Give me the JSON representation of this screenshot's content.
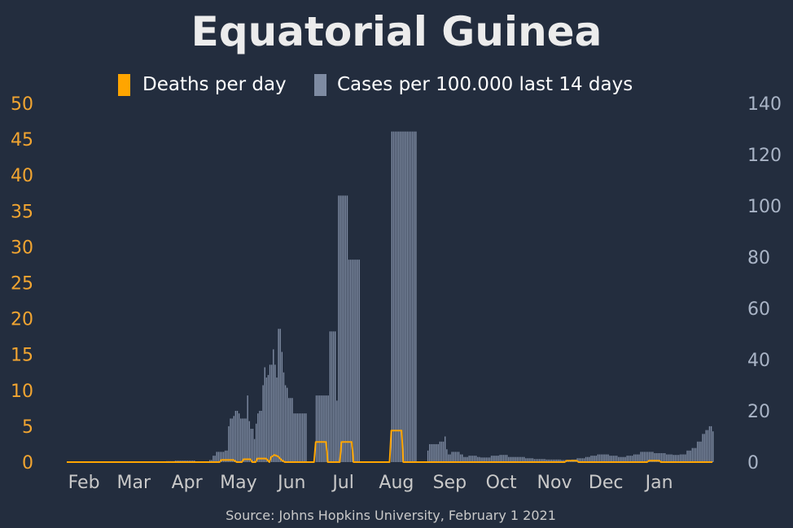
{
  "chart_data": {
    "type": "bar+line",
    "title": "Equatorial Guinea",
    "source": "Source: Johns Hopkins University, February 1 2021",
    "legend": {
      "placement": "top-center",
      "entries": [
        {
          "label": "Deaths per day",
          "color": "#ffa500",
          "series": "deaths"
        },
        {
          "label": "Cases per 100.000 last 14 days",
          "color": "#7e8ba2",
          "series": "cases"
        }
      ]
    },
    "x_axis": {
      "type": "date",
      "range": [
        "2020-01-22",
        "2021-02-01"
      ],
      "ticks": [
        {
          "label": "Feb",
          "date": "2020-02-01"
        },
        {
          "label": "Mar",
          "date": "2020-03-01"
        },
        {
          "label": "Apr",
          "date": "2020-04-01"
        },
        {
          "label": "May",
          "date": "2020-05-01"
        },
        {
          "label": "Jun",
          "date": "2020-06-01"
        },
        {
          "label": "Jul",
          "date": "2020-07-01"
        },
        {
          "label": "Aug",
          "date": "2020-08-01"
        },
        {
          "label": "Sep",
          "date": "2020-09-01"
        },
        {
          "label": "Oct",
          "date": "2020-10-01"
        },
        {
          "label": "Nov",
          "date": "2020-11-01"
        },
        {
          "label": "Dec",
          "date": "2020-12-01"
        },
        {
          "label": "Jan",
          "date": "2021-01-01"
        }
      ]
    },
    "y_left": {
      "range": [
        0,
        50
      ],
      "ticks": [
        "0",
        "5",
        "10",
        "15",
        "20",
        "25",
        "30",
        "35",
        "40",
        "45",
        "50"
      ],
      "color": "#f2a531"
    },
    "y_right": {
      "range": [
        0,
        140
      ],
      "ticks": [
        "0",
        "20",
        "40",
        "60",
        "80",
        "100",
        "120",
        "140"
      ],
      "color": "#a9b4c6"
    },
    "grid": false,
    "series": [
      {
        "id": "cases",
        "type": "bar",
        "axis": "right",
        "color": "#7e8ba2",
        "points": [
          [
            "2020-03-15",
            0.2
          ],
          [
            "2020-03-20",
            0.4
          ],
          [
            "2020-03-25",
            0.6
          ],
          [
            "2020-04-01",
            0.6
          ],
          [
            "2020-04-06",
            0.3
          ],
          [
            "2020-04-11",
            0.2
          ],
          [
            "2020-04-14",
            0.8
          ],
          [
            "2020-04-16",
            2.5
          ],
          [
            "2020-04-18",
            4.0
          ],
          [
            "2020-04-23",
            4.5
          ],
          [
            "2020-04-25",
            14
          ],
          [
            "2020-04-26",
            17
          ],
          [
            "2020-04-28",
            18
          ],
          [
            "2020-04-29",
            20
          ],
          [
            "2020-05-01",
            19
          ],
          [
            "2020-05-02",
            17
          ],
          [
            "2020-05-05",
            17
          ],
          [
            "2020-05-06",
            26
          ],
          [
            "2020-05-07",
            16
          ],
          [
            "2020-05-08",
            13
          ],
          [
            "2020-05-10",
            9
          ],
          [
            "2020-05-11",
            15
          ],
          [
            "2020-05-12",
            19
          ],
          [
            "2020-05-13",
            20
          ],
          [
            "2020-05-15",
            30
          ],
          [
            "2020-05-16",
            37
          ],
          [
            "2020-05-17",
            33
          ],
          [
            "2020-05-18",
            34
          ],
          [
            "2020-05-19",
            38
          ],
          [
            "2020-05-21",
            44
          ],
          [
            "2020-05-22",
            38
          ],
          [
            "2020-05-23",
            33
          ],
          [
            "2020-05-24",
            52
          ],
          [
            "2020-05-25",
            52
          ],
          [
            "2020-05-26",
            43
          ],
          [
            "2020-05-27",
            35
          ],
          [
            "2020-05-28",
            30
          ],
          [
            "2020-05-29",
            29
          ],
          [
            "2020-05-30",
            25
          ],
          [
            "2020-06-01",
            25
          ],
          [
            "2020-06-02",
            19
          ],
          [
            "2020-06-05",
            19
          ],
          [
            "2020-06-10",
            0
          ],
          [
            "2020-06-15",
            26
          ],
          [
            "2020-06-23",
            51
          ],
          [
            "2020-06-27",
            24
          ],
          [
            "2020-06-28",
            104
          ],
          [
            "2020-07-04",
            79
          ],
          [
            "2020-07-11",
            0
          ],
          [
            "2020-07-29",
            129
          ],
          [
            "2020-08-13",
            0
          ],
          [
            "2020-08-19",
            4.5
          ],
          [
            "2020-08-20",
            7
          ],
          [
            "2020-08-26",
            8
          ],
          [
            "2020-08-29",
            10
          ],
          [
            "2020-08-30",
            5
          ],
          [
            "2020-08-31",
            3
          ],
          [
            "2020-09-02",
            4
          ],
          [
            "2020-09-07",
            3
          ],
          [
            "2020-09-09",
            2
          ],
          [
            "2020-09-12",
            2.5
          ],
          [
            "2020-09-17",
            2
          ],
          [
            "2020-09-19",
            1.8
          ],
          [
            "2020-09-25",
            2.5
          ],
          [
            "2020-09-30",
            2.8
          ],
          [
            "2020-10-05",
            2
          ],
          [
            "2020-10-10",
            2
          ],
          [
            "2020-10-15",
            1.5
          ],
          [
            "2020-10-20",
            1.2
          ],
          [
            "2020-10-27",
            1
          ],
          [
            "2020-11-05",
            0.8
          ],
          [
            "2020-11-11",
            1
          ],
          [
            "2020-11-14",
            1.5
          ],
          [
            "2020-11-19",
            2
          ],
          [
            "2020-11-22",
            2.5
          ],
          [
            "2020-11-26",
            3
          ],
          [
            "2020-12-03",
            2.5
          ],
          [
            "2020-12-08",
            2
          ],
          [
            "2020-12-13",
            2.5
          ],
          [
            "2020-12-17",
            3
          ],
          [
            "2020-12-21",
            4
          ],
          [
            "2020-12-25",
            4
          ],
          [
            "2020-12-29",
            3.5
          ],
          [
            "2021-01-02",
            3.5
          ],
          [
            "2021-01-05",
            3
          ],
          [
            "2021-01-09",
            2.8
          ],
          [
            "2021-01-13",
            3
          ],
          [
            "2021-01-17",
            4.5
          ],
          [
            "2021-01-20",
            5.5
          ],
          [
            "2021-01-23",
            8
          ],
          [
            "2021-01-26",
            11
          ],
          [
            "2021-01-28",
            12.5
          ],
          [
            "2021-01-30",
            14
          ],
          [
            "2021-02-01",
            12
          ]
        ]
      },
      {
        "id": "deaths",
        "type": "line",
        "axis": "left",
        "color": "#ffa500",
        "points": [
          [
            "2020-01-22",
            0
          ],
          [
            "2020-04-20",
            0
          ],
          [
            "2020-04-21",
            0.3
          ],
          [
            "2020-04-28",
            0.3
          ],
          [
            "2020-04-30",
            0
          ],
          [
            "2020-05-03",
            0
          ],
          [
            "2020-05-04",
            0.4
          ],
          [
            "2020-05-08",
            0.4
          ],
          [
            "2020-05-09",
            0
          ],
          [
            "2020-05-11",
            0
          ],
          [
            "2020-05-12",
            0.5
          ],
          [
            "2020-05-17",
            0.5
          ],
          [
            "2020-05-19",
            0
          ],
          [
            "2020-05-20",
            0.7
          ],
          [
            "2020-05-22",
            1.0
          ],
          [
            "2020-05-24",
            0.8
          ],
          [
            "2020-05-26",
            0.3
          ],
          [
            "2020-05-28",
            0
          ],
          [
            "2020-06-14",
            0
          ],
          [
            "2020-06-15",
            2.8
          ],
          [
            "2020-06-21",
            2.8
          ],
          [
            "2020-06-22",
            0
          ],
          [
            "2020-06-29",
            0
          ],
          [
            "2020-06-30",
            2.8
          ],
          [
            "2020-07-06",
            2.8
          ],
          [
            "2020-07-07",
            0
          ],
          [
            "2020-07-28",
            0
          ],
          [
            "2020-07-29",
            4.4
          ],
          [
            "2020-08-04",
            4.4
          ],
          [
            "2020-08-05",
            0
          ],
          [
            "2020-11-07",
            0
          ],
          [
            "2020-11-08",
            0.2
          ],
          [
            "2020-11-14",
            0.2
          ],
          [
            "2020-11-15",
            0
          ],
          [
            "2020-12-25",
            0
          ],
          [
            "2020-12-26",
            0.2
          ],
          [
            "2021-01-01",
            0.2
          ],
          [
            "2021-01-02",
            0
          ],
          [
            "2021-02-01",
            0
          ]
        ]
      }
    ]
  }
}
